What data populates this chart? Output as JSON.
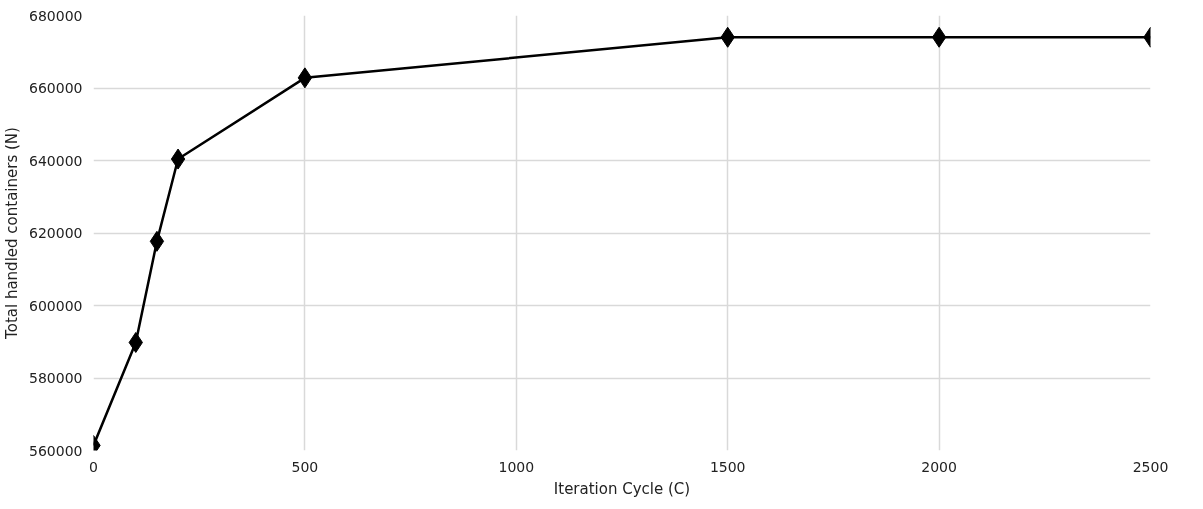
{
  "chart_data": {
    "type": "line",
    "xlabel": "Iteration Cycle (C)",
    "ylabel": "Total handled containers (N)",
    "x": [
      0,
      100,
      150,
      200,
      500,
      1500,
      2000,
      2500
    ],
    "series": [
      {
        "color": "#000000",
        "values": [
          561400,
          589800,
          617700,
          640400,
          662800,
          674000,
          674000,
          674000
        ]
      }
    ],
    "xlim": [
      0,
      2500
    ],
    "xticks": [
      0,
      500,
      1000,
      1500,
      2000,
      2500
    ],
    "ylim": [
      560000,
      680000
    ],
    "yticks": [
      560000,
      580000,
      600000,
      620000,
      640000,
      660000,
      680000
    ],
    "grid": true,
    "marker": "diamond",
    "line_style": "solid"
  }
}
